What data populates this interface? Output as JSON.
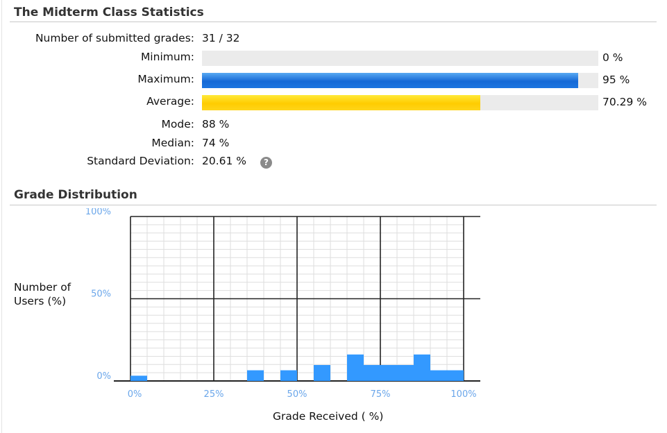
{
  "stats": {
    "title": "The Midterm Class Statistics",
    "submitted": {
      "label": "Number of submitted grades:",
      "value": "31 / 32"
    },
    "minimum": {
      "label": "Minimum:",
      "value": "0 %",
      "fraction": 0
    },
    "maximum": {
      "label": "Maximum:",
      "value": "95 %",
      "fraction": 0.95
    },
    "average": {
      "label": "Average:",
      "value": "70.29 %",
      "fraction": 0.7029
    },
    "mode": {
      "label": "Mode:",
      "value": "88 %"
    },
    "median": {
      "label": "Median:",
      "value": "74 %"
    },
    "std_dev": {
      "label": "Standard Deviation:",
      "value": "20.61 %",
      "help_icon": "help-icon"
    }
  },
  "colors": {
    "max_bar": "#1c6fdc",
    "avg_bar": "#ffd000",
    "hist_bar": "#3399ff"
  },
  "distribution": {
    "title": "Grade Distribution",
    "chart_data": {
      "type": "bar",
      "xlabel": "Grade Received ( %)",
      "ylabel": "Number of Users (%)",
      "xlim": [
        0,
        100
      ],
      "ylim": [
        0,
        100
      ],
      "x_ticks": [
        "0%",
        "25%",
        "50%",
        "75%",
        "100%"
      ],
      "y_ticks": [
        "0%",
        "50%",
        "100%"
      ],
      "grid": true,
      "bins": [
        {
          "x0": 0,
          "x1": 5,
          "value": 3.2
        },
        {
          "x0": 35,
          "x1": 40,
          "value": 6.5
        },
        {
          "x0": 45,
          "x1": 50,
          "value": 6.5
        },
        {
          "x0": 55,
          "x1": 60,
          "value": 9.7
        },
        {
          "x0": 65,
          "x1": 70,
          "value": 16.1
        },
        {
          "x0": 70,
          "x1": 75,
          "value": 9.7
        },
        {
          "x0": 75,
          "x1": 80,
          "value": 9.7
        },
        {
          "x0": 80,
          "x1": 85,
          "value": 9.7
        },
        {
          "x0": 85,
          "x1": 90,
          "value": 16.1
        },
        {
          "x0": 90,
          "x1": 95,
          "value": 6.5
        },
        {
          "x0": 95,
          "x1": 100,
          "value": 6.5
        }
      ]
    }
  }
}
